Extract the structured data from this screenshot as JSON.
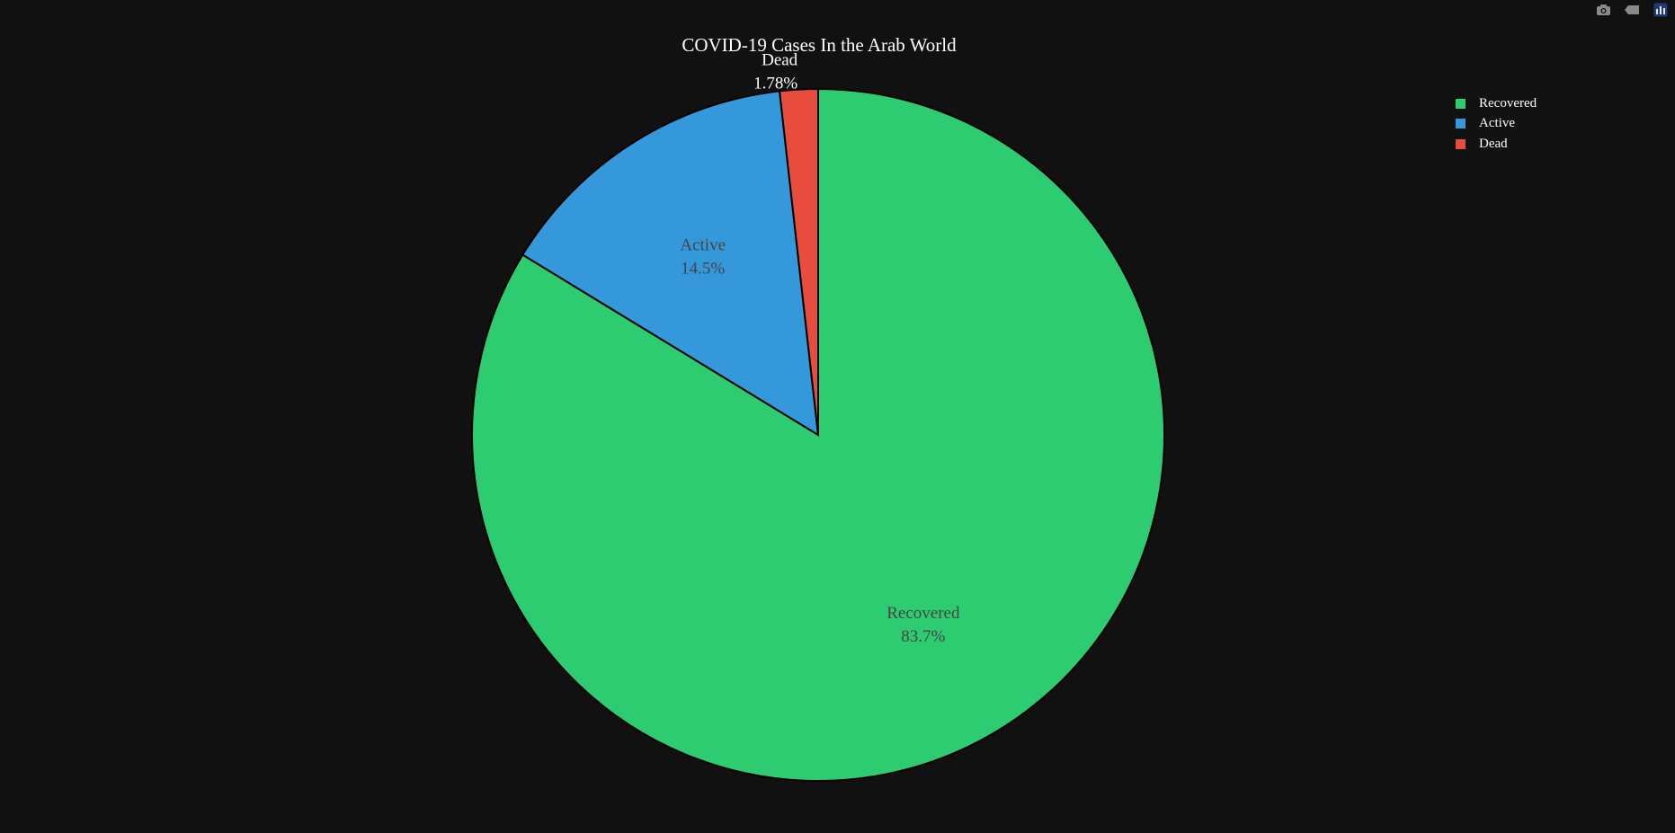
{
  "chart_data": {
    "type": "pie",
    "title": "COVID-19 Cases In the Arab World",
    "slices": [
      {
        "label": "Recovered",
        "percent": 83.7,
        "percent_text": "83.7%",
        "color": "#2ecc71",
        "text_color": "#444444"
      },
      {
        "label": "Active",
        "percent": 14.5,
        "percent_text": "14.5%",
        "color": "#3498db",
        "text_color": "#444444"
      },
      {
        "label": "Dead",
        "percent": 1.78,
        "percent_text": "1.78%",
        "color": "#e74c3c",
        "text_color": "#ffffff"
      }
    ],
    "direction": "clockwise",
    "legend_position": "top-right",
    "outline_color": "#000000",
    "background": "#111111"
  },
  "legend": {
    "items": [
      {
        "label": "Recovered",
        "color": "#2ecc71"
      },
      {
        "label": "Active",
        "color": "#3498db"
      },
      {
        "label": "Dead",
        "color": "#e74c3c"
      }
    ]
  },
  "modebar": {
    "icons": [
      "camera-icon",
      "tag-icon",
      "plotly-logo-icon"
    ]
  }
}
